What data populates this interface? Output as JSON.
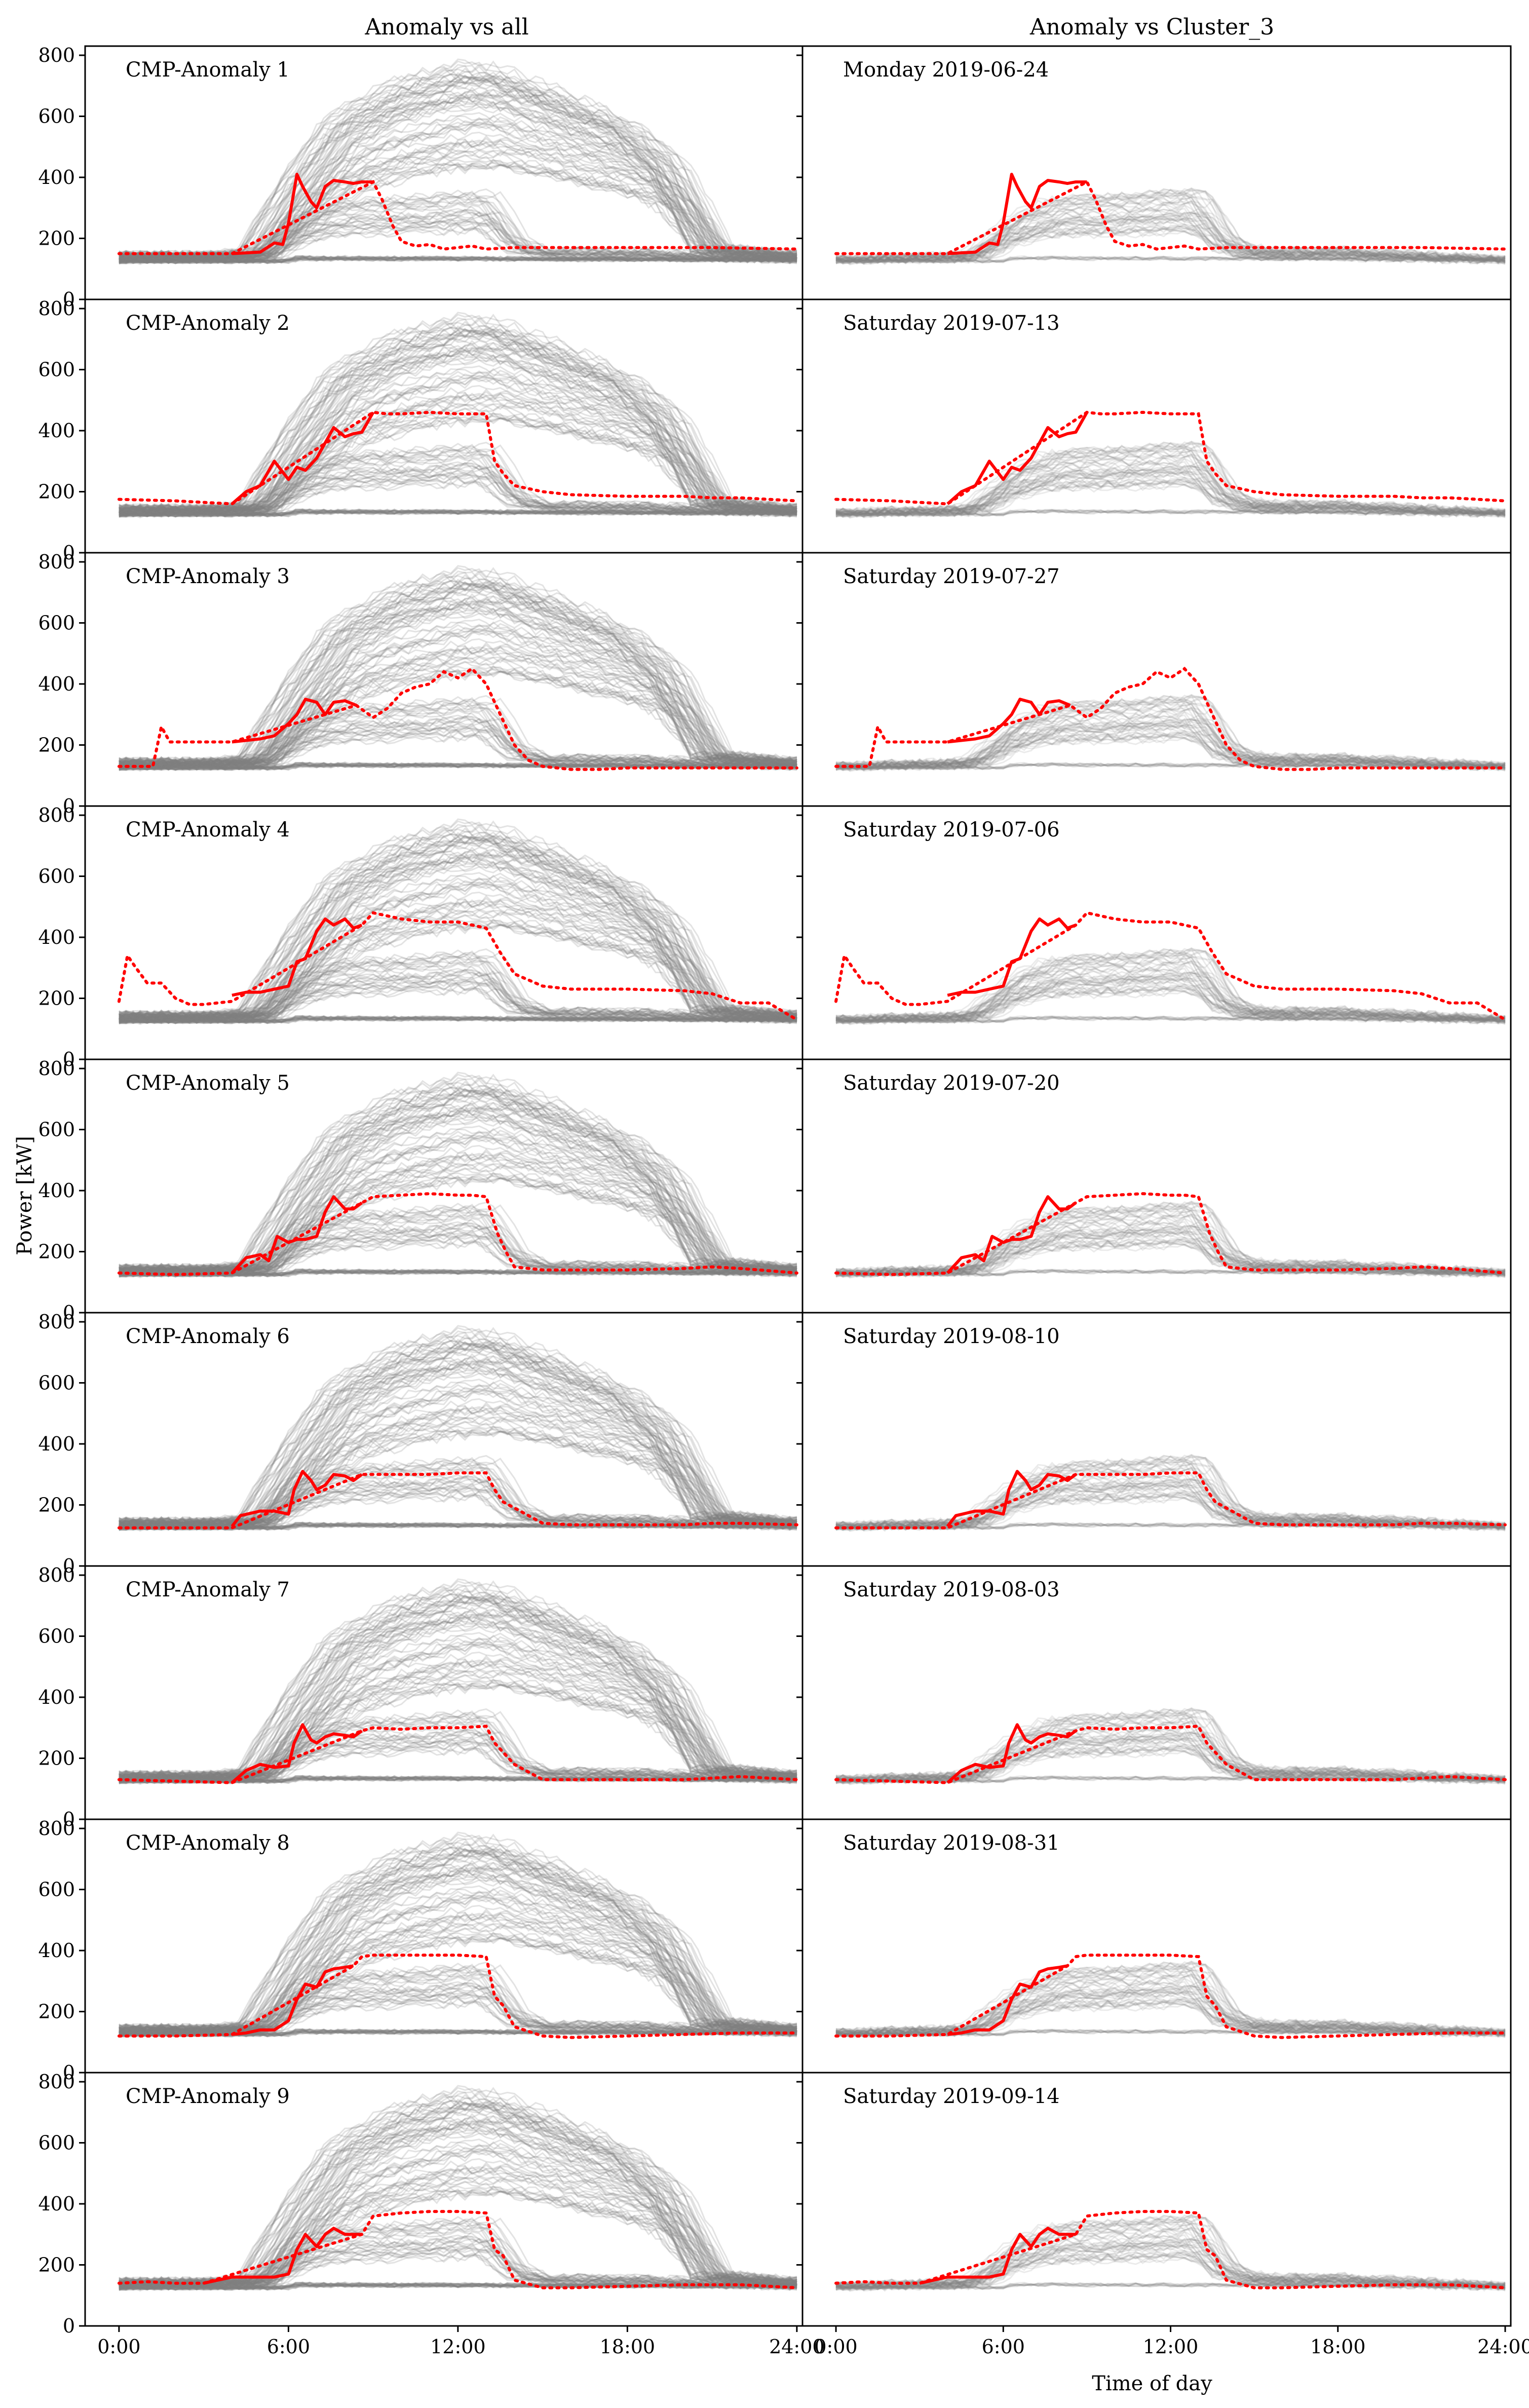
{
  "chart_data": {
    "type": "line",
    "column_titles": [
      "Anomaly vs all",
      "Anomaly vs Cluster_3"
    ],
    "ylabel": "Power [kW]",
    "xlabel": "Time of day",
    "ylim": [
      0,
      830
    ],
    "xlim": [
      -1.2,
      24.2
    ],
    "yticks": [
      0,
      200,
      400,
      600,
      800
    ],
    "ytick_labels": [
      "0",
      "200",
      "400",
      "600",
      "800"
    ],
    "xticks": [
      0,
      6,
      12,
      18,
      24
    ],
    "xtick_labels": [
      "0:00",
      "6:00",
      "12:00",
      "18:00",
      "24:00"
    ],
    "colors": {
      "anomaly": "#ff0000",
      "background": "#808080"
    },
    "legend": "none",
    "background_series": {
      "description_shown": "grey translucent daily load profiles",
      "all_days_weekday_profile": {
        "x": [
          0,
          4,
          5,
          6.5,
          8,
          10,
          12,
          13,
          15,
          18,
          19.5,
          21,
          24
        ],
        "y": [
          140,
          140,
          150,
          330,
          480,
          560,
          600,
          610,
          560,
          470,
          380,
          160,
          140
        ]
      },
      "all_days_weekend_profile": {
        "x": [
          0,
          6,
          6.3,
          24
        ],
        "y": [
          125,
          125,
          135,
          130
        ]
      },
      "cluster_profile": {
        "x": [
          0,
          5,
          6.5,
          8,
          10,
          12,
          13,
          14,
          15,
          18,
          21,
          24
        ],
        "y": [
          130,
          140,
          230,
          270,
          275,
          285,
          290,
          180,
          150,
          150,
          140,
          130
        ]
      }
    },
    "panels": [
      {
        "row": 1,
        "label": "CMP-Anomaly 1",
        "date": "Monday 2019-06-24",
        "solid": {
          "x": [
            4,
            5,
            5.5,
            5.8,
            6,
            6.3,
            6.5,
            6.8,
            7,
            7.3,
            7.6,
            8,
            8.3,
            8.6,
            9
          ],
          "y": [
            150,
            155,
            185,
            180,
            250,
            410,
            370,
            320,
            300,
            370,
            390,
            385,
            380,
            385,
            385
          ]
        },
        "dotted": {
          "x": [
            0,
            1,
            2,
            3,
            4,
            9,
            9.3,
            9.7,
            10,
            10.5,
            11,
            11.5,
            12,
            12.5,
            13,
            14,
            15,
            18,
            21,
            24
          ],
          "y": [
            150,
            150,
            150,
            150,
            150,
            385,
            330,
            240,
            190,
            175,
            180,
            165,
            170,
            175,
            165,
            170,
            170,
            170,
            170,
            165
          ]
        }
      },
      {
        "row": 2,
        "label": "CMP-Anomaly 2",
        "date": "Saturday 2019-07-13",
        "solid": {
          "x": [
            4,
            4.5,
            5,
            5.5,
            6,
            6.3,
            6.6,
            7,
            7.3,
            7.6,
            8,
            8.3,
            8.6,
            9
          ],
          "y": [
            160,
            200,
            220,
            300,
            240,
            280,
            270,
            310,
            360,
            410,
            380,
            390,
            395,
            460
          ]
        },
        "dotted": {
          "x": [
            0,
            2,
            4,
            9,
            9.5,
            10,
            11,
            12,
            13,
            13.3,
            13.6,
            14,
            15,
            16,
            18,
            20,
            21,
            22,
            24
          ],
          "y": [
            175,
            170,
            160,
            460,
            455,
            455,
            460,
            455,
            455,
            300,
            260,
            220,
            200,
            190,
            185,
            185,
            180,
            180,
            170
          ]
        }
      },
      {
        "row": 3,
        "label": "CMP-Anomaly 3",
        "date": "Saturday 2019-07-27",
        "solid": {
          "x": [
            4,
            5,
            5.5,
            6,
            6.3,
            6.6,
            7,
            7.3,
            7.6,
            8,
            8.4
          ],
          "y": [
            210,
            220,
            230,
            270,
            300,
            350,
            340,
            300,
            340,
            345,
            330
          ]
        },
        "dotted": {
          "x": [
            0,
            1.2,
            1.5,
            1.8,
            2.3,
            3,
            4,
            8.4,
            9,
            9.5,
            10,
            10.5,
            11,
            11.5,
            12,
            12.5,
            13,
            13.5,
            14,
            14.5,
            15,
            16,
            17,
            18,
            21,
            24
          ],
          "y": [
            130,
            130,
            260,
            210,
            210,
            210,
            210,
            330,
            290,
            320,
            370,
            390,
            400,
            440,
            420,
            450,
            400,
            300,
            200,
            150,
            130,
            120,
            120,
            125,
            125,
            125
          ]
        }
      },
      {
        "row": 4,
        "label": "CMP-Anomaly 4",
        "date": "Saturday 2019-07-06",
        "solid": {
          "x": [
            4,
            4.5,
            5,
            5.5,
            6,
            6.3,
            6.6,
            7,
            7.3,
            7.6,
            8,
            8.3,
            8.6
          ],
          "y": [
            210,
            220,
            220,
            230,
            240,
            320,
            330,
            420,
            460,
            440,
            460,
            430,
            440
          ]
        },
        "dotted": {
          "x": [
            0,
            0.3,
            0.6,
            1,
            1.5,
            2,
            2.5,
            3,
            4,
            8.6,
            9,
            10,
            11,
            12,
            13,
            13.5,
            14,
            15,
            16,
            18,
            20,
            21,
            22,
            23,
            24
          ],
          "y": [
            190,
            340,
            300,
            250,
            250,
            200,
            180,
            180,
            190,
            440,
            480,
            460,
            450,
            450,
            430,
            350,
            280,
            240,
            230,
            230,
            225,
            215,
            185,
            185,
            130
          ]
        }
      },
      {
        "row": 5,
        "label": "CMP-Anomaly 5",
        "date": "Saturday 2019-07-20",
        "solid": {
          "x": [
            4,
            4.5,
            5,
            5.3,
            5.6,
            6,
            6.3,
            6.6,
            7,
            7.3,
            7.6,
            8,
            8.3,
            8.6
          ],
          "y": [
            130,
            180,
            190,
            170,
            250,
            230,
            240,
            240,
            250,
            330,
            380,
            340,
            340,
            360
          ]
        },
        "dotted": {
          "x": [
            0,
            2,
            4,
            8.6,
            9,
            10,
            11,
            12,
            12.5,
            13,
            13.4,
            13.7,
            14,
            15,
            16,
            18,
            20,
            21,
            22,
            24
          ],
          "y": [
            130,
            125,
            130,
            360,
            380,
            385,
            390,
            385,
            385,
            380,
            260,
            200,
            150,
            140,
            140,
            140,
            145,
            150,
            145,
            130
          ]
        }
      },
      {
        "row": 6,
        "label": "CMP-Anomaly 6",
        "date": "Saturday 2019-08-10",
        "solid": {
          "x": [
            4,
            4.3,
            5,
            5.5,
            6,
            6.2,
            6.5,
            6.8,
            7,
            7.3,
            7.6,
            8,
            8.3,
            8.6
          ],
          "y": [
            130,
            165,
            180,
            180,
            170,
            250,
            310,
            280,
            250,
            265,
            300,
            295,
            280,
            300
          ]
        },
        "dotted": {
          "x": [
            0,
            2,
            4,
            8.6,
            9,
            10,
            11,
            12,
            13,
            13.3,
            13.6,
            14,
            15,
            16,
            18,
            20,
            21,
            22,
            24
          ],
          "y": [
            125,
            125,
            125,
            300,
            300,
            300,
            300,
            305,
            305,
            250,
            210,
            190,
            140,
            135,
            135,
            135,
            140,
            140,
            135
          ]
        }
      },
      {
        "row": 7,
        "label": "CMP-Anomaly 7",
        "date": "Saturday 2019-08-03",
        "solid": {
          "x": [
            4,
            4.5,
            5,
            5.5,
            6,
            6.2,
            6.5,
            6.8,
            7,
            7.3,
            7.6,
            8,
            8.3,
            8.6
          ],
          "y": [
            120,
            160,
            180,
            170,
            175,
            250,
            310,
            260,
            250,
            270,
            280,
            275,
            270,
            290
          ]
        },
        "dotted": {
          "x": [
            0,
            2,
            4,
            8.6,
            9,
            10,
            11,
            12,
            13,
            13.3,
            13.6,
            14,
            15,
            16,
            18,
            20,
            22,
            24
          ],
          "y": [
            130,
            125,
            120,
            290,
            300,
            295,
            300,
            300,
            305,
            250,
            220,
            180,
            130,
            130,
            130,
            130,
            140,
            130
          ]
        }
      },
      {
        "row": 8,
        "label": "CMP-Anomaly 8",
        "date": "Saturday 2019-08-31",
        "solid": {
          "x": [
            4,
            4.5,
            5,
            5.5,
            6,
            6.3,
            6.6,
            7,
            7.3,
            7.6,
            8,
            8.3
          ],
          "y": [
            125,
            130,
            140,
            140,
            170,
            240,
            290,
            280,
            330,
            340,
            345,
            350
          ]
        },
        "dotted": {
          "x": [
            0,
            2,
            4,
            8.3,
            8.6,
            9,
            10,
            11,
            12,
            13,
            13.3,
            13.6,
            14,
            15,
            16,
            18,
            20,
            22,
            24
          ],
          "y": [
            120,
            120,
            125,
            350,
            380,
            385,
            385,
            385,
            385,
            380,
            250,
            220,
            150,
            120,
            115,
            120,
            125,
            130,
            130
          ]
        }
      },
      {
        "row": 9,
        "label": "CMP-Anomaly 9",
        "date": "Saturday 2019-09-14",
        "solid": {
          "x": [
            3,
            4,
            5,
            5.5,
            6,
            6.3,
            6.6,
            7,
            7.3,
            7.6,
            8,
            8.3,
            8.6
          ],
          "y": [
            140,
            160,
            160,
            160,
            170,
            250,
            300,
            260,
            300,
            320,
            300,
            300,
            300
          ]
        },
        "dotted": {
          "x": [
            0,
            1,
            2,
            3,
            8.6,
            9,
            10,
            11,
            12,
            13,
            13.3,
            13.6,
            14,
            15,
            16,
            18,
            20,
            22,
            24
          ],
          "y": [
            140,
            145,
            140,
            140,
            300,
            360,
            370,
            375,
            375,
            370,
            250,
            230,
            150,
            125,
            125,
            130,
            135,
            135,
            125
          ]
        }
      }
    ]
  }
}
